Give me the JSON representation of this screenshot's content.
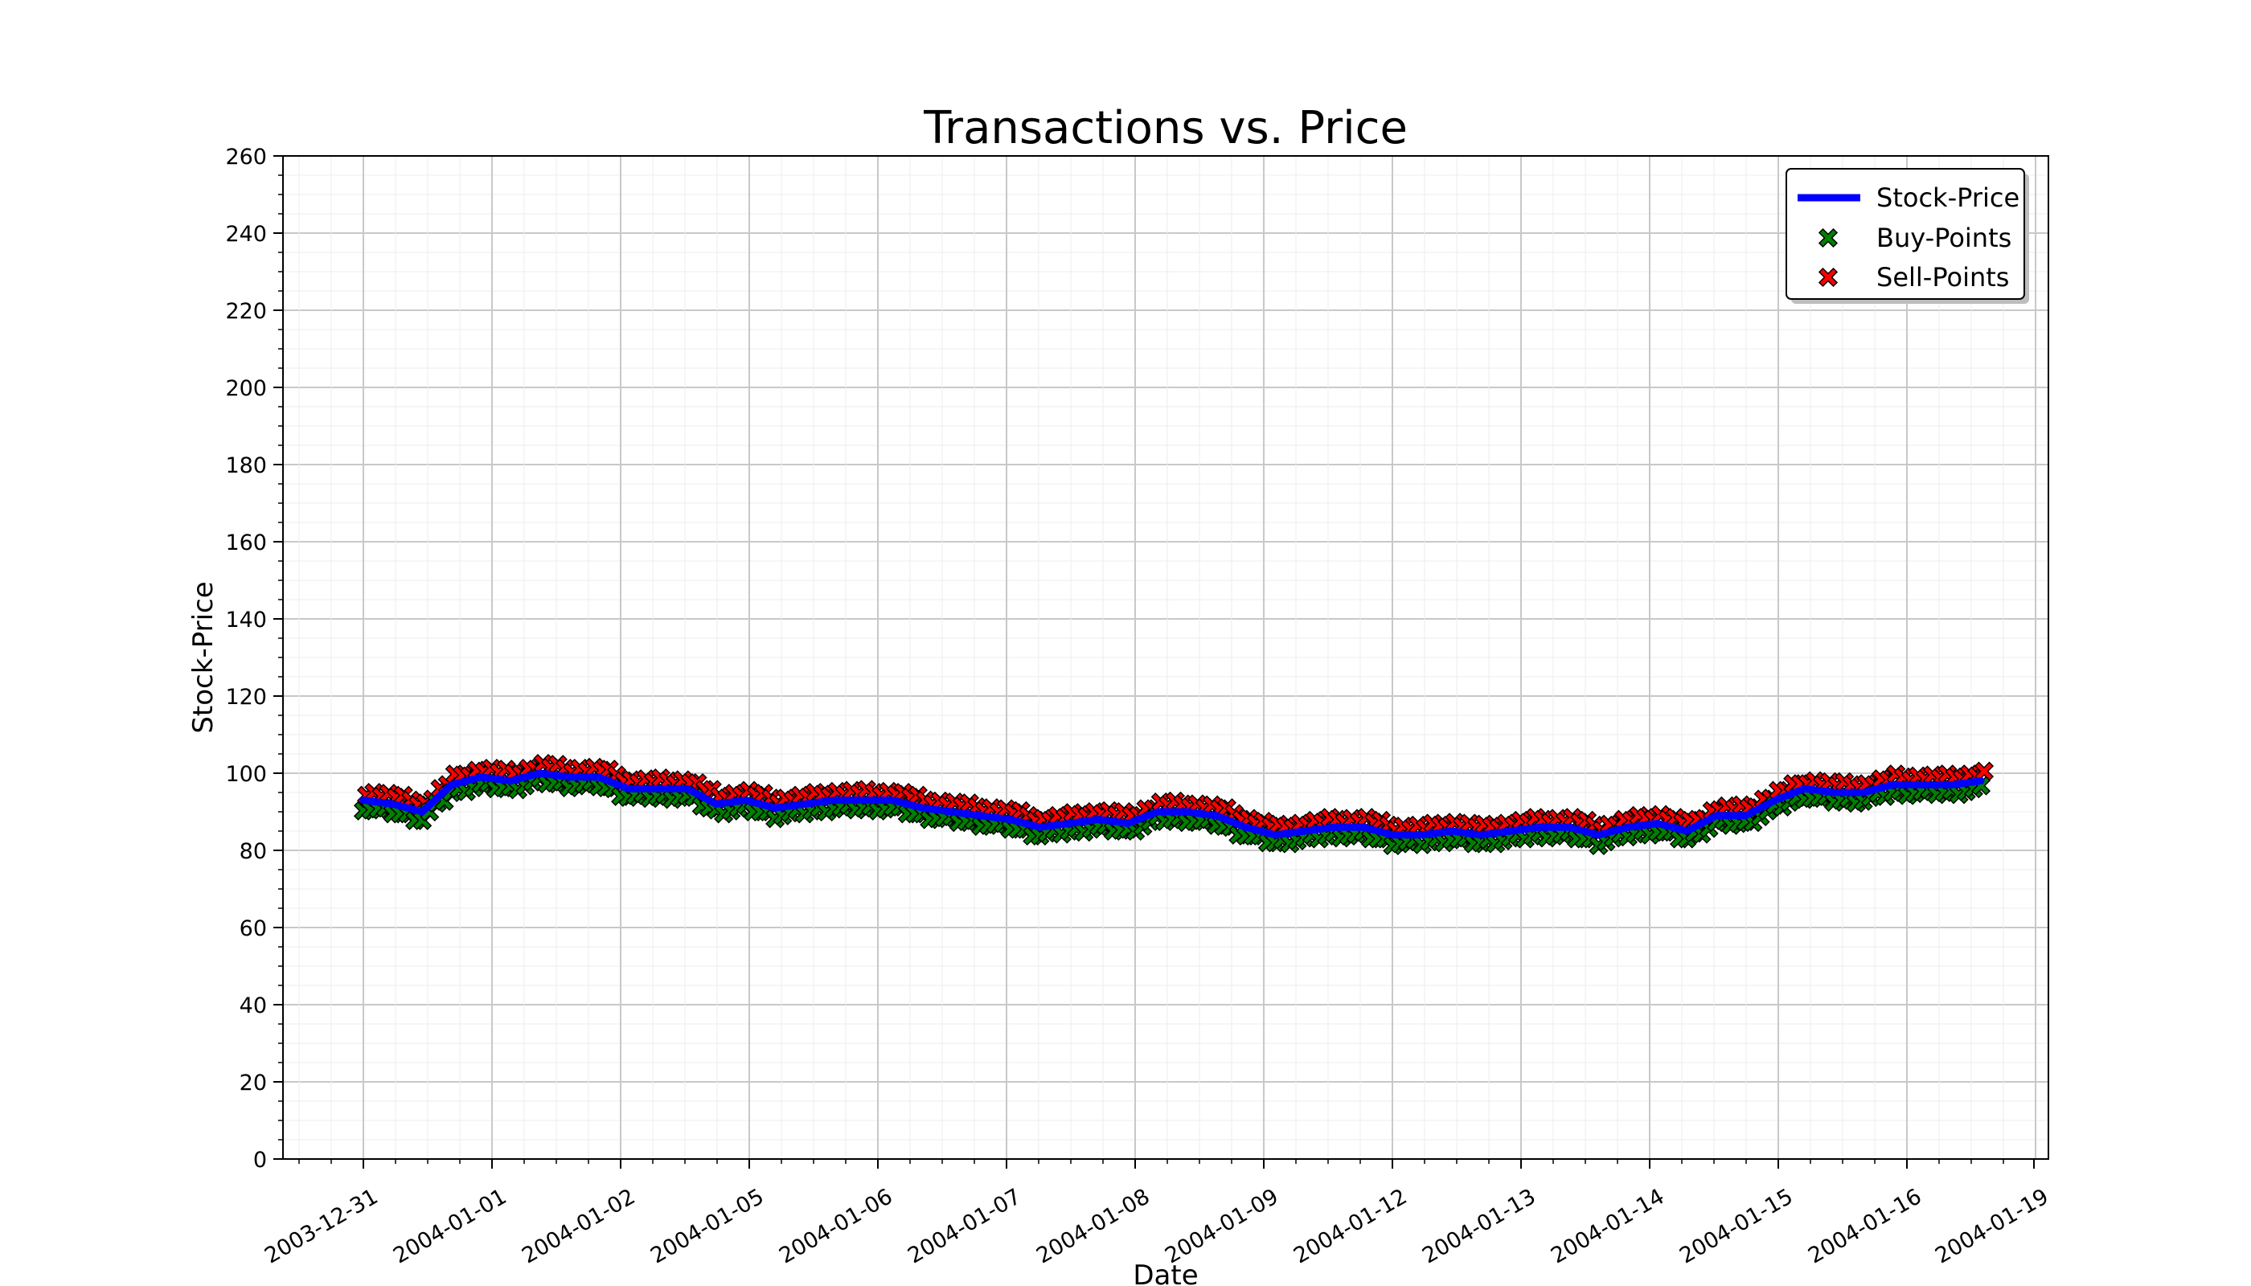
{
  "chart_data": {
    "type": "line",
    "title": "Transactions vs. Price",
    "xlabel": "Date",
    "ylabel": "Stock-Price",
    "ylim": [
      0,
      260
    ],
    "yticks": [
      0,
      20,
      40,
      60,
      80,
      100,
      120,
      140,
      160,
      180,
      200,
      220,
      240,
      260
    ],
    "xtick_labels": [
      "2003-12-31",
      "2004-01-01",
      "2004-01-02",
      "2004-01-05",
      "2004-01-06",
      "2004-01-07",
      "2004-01-08",
      "2004-01-09",
      "2004-01-12",
      "2004-01-13",
      "2004-01-14",
      "2004-01-15",
      "2004-01-16",
      "2004-01-19"
    ],
    "grid": true,
    "legend_position": "top-right",
    "legend": [
      "Stock-Price",
      "Buy-Points",
      "Sell-Points"
    ],
    "colors": {
      "price_line": "#0000ff",
      "buy_marker": "#008000",
      "sell_marker": "#ff0000"
    },
    "series": [
      {
        "name": "Stock-Price",
        "x_start": "2003-12-31",
        "x_end": "2004-01-16",
        "values": [
          93,
          92,
          90,
          97,
          99,
          98,
          100,
          99,
          99,
          96,
          96,
          96,
          92,
          93,
          91,
          92,
          93,
          93,
          93,
          91,
          90,
          89,
          88,
          86,
          87,
          88,
          87,
          90,
          90,
          89,
          86,
          84,
          85,
          86,
          86,
          84,
          84,
          85,
          84,
          85,
          86,
          86,
          84,
          86,
          87,
          85,
          89,
          89,
          93,
          96,
          95,
          95,
          97,
          97,
          97,
          98
        ]
      }
    ]
  }
}
